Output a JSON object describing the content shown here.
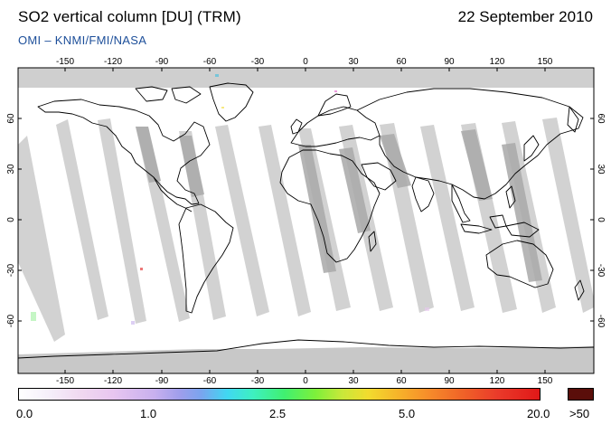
{
  "header": {
    "title": "SO2 vertical column [DU] (TRM)",
    "date": "22 September 2010",
    "subtitle": "OMI  –  KNMI/FMI/NASA"
  },
  "map": {
    "lon_ticks": [
      "-150",
      "-120",
      "-90",
      "-60",
      "-30",
      "0",
      "30",
      "60",
      "90",
      "120",
      "150"
    ],
    "lat_ticks": [
      "60",
      "30",
      "0",
      "-30",
      "-60"
    ]
  },
  "colorbar": {
    "labels": [
      "0.0",
      "1.0",
      "2.5",
      "5.0",
      "20.0"
    ],
    "overflow_label": ">50",
    "overflow_color": "#5a0e0a"
  },
  "colors": {
    "subtitle": "#1d4f9a",
    "coverage_gap": "#cfcfcf",
    "polar_band": "#c8c8c8"
  }
}
